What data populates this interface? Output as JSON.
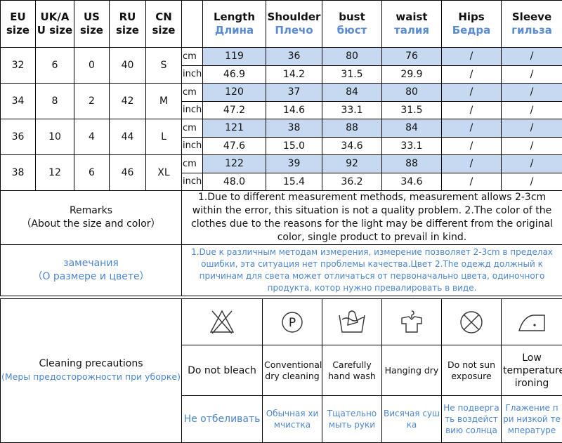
{
  "headers": {
    "eu": "EU size",
    "uk": "UK/A U size",
    "us": "US size",
    "ru": "RU size",
    "cn": "CN size",
    "measures": [
      {
        "en": "Length",
        "ru": "Длина"
      },
      {
        "en": "Shoulder",
        "ru": "Плечо"
      },
      {
        "en": "bust",
        "ru": "бюст"
      },
      {
        "en": "waist",
        "ru": "талия"
      },
      {
        "en": "Hips",
        "ru": "Бедра"
      },
      {
        "en": "Sleeve",
        "ru": "гильза"
      }
    ]
  },
  "units": {
    "cm": "cm",
    "inch": "inch"
  },
  "sizes": [
    {
      "eu": "32",
      "uk": "6",
      "us": "0",
      "ru": "40",
      "cn": "S",
      "cm": [
        "119",
        "36",
        "80",
        "76",
        "/",
        "/"
      ],
      "inch": [
        "46.9",
        "14.2",
        "31.5",
        "29.9",
        "/",
        "/"
      ]
    },
    {
      "eu": "34",
      "uk": "8",
      "us": "2",
      "ru": "42",
      "cn": "M",
      "cm": [
        "120",
        "37",
        "84",
        "80",
        "/",
        "/"
      ],
      "inch": [
        "47.2",
        "14.6",
        "33.1",
        "31.5",
        "/",
        "/"
      ]
    },
    {
      "eu": "36",
      "uk": "10",
      "us": "4",
      "ru": "44",
      "cn": "L",
      "cm": [
        "121",
        "38",
        "88",
        "84",
        "/",
        "/"
      ],
      "inch": [
        "47.6",
        "15.0",
        "34.6",
        "33.1",
        "/",
        "/"
      ]
    },
    {
      "eu": "38",
      "uk": "12",
      "us": "6",
      "ru": "46",
      "cn": "XL",
      "cm": [
        "122",
        "39",
        "92",
        "88",
        "/",
        "/"
      ],
      "inch": [
        "48.0",
        "15.4",
        "36.2",
        "34.6",
        "/",
        "/"
      ]
    }
  ],
  "remarks": {
    "title": "Remarks",
    "subtitle": "（About the size and color）",
    "text": "1.Due to different measurement methods, measurement allows 2-3cm within the error, this situation is not a quality problem.    2.The color of the clothes due to the reasons for the light may be different from the original color, single product to prevail in kind.",
    "title_ru": "замечания",
    "subtitle_ru": "（О размере и цвете）",
    "text_ru": "1.Due к различным методам измерения, измерение позволяет 2-3cm в пределах ошибки, эта ситуация нет проблемы качества.Цвет 2.The одежд должный к причинам для света может отличаться от первоначально цвета, одиночного продукта, котор нужно превалировать в виде."
  },
  "cleaning": {
    "title": "Cleaning precautions",
    "subtitle": "(Меры предосторожности при уборке)",
    "items": [
      {
        "icon": "no-bleach-icon",
        "en": "Do not bleach",
        "ru": "Не отбеливать"
      },
      {
        "icon": "dry-clean-p-icon",
        "en": "Conventional dry cleaning",
        "ru": "Обычная химчистка"
      },
      {
        "icon": "hand-wash-icon",
        "en": "Carefully hand wash",
        "ru": "Тщательно мыть руки"
      },
      {
        "icon": "hang-dry-icon",
        "en": "Hanging dry",
        "ru": "Висячая сушка"
      },
      {
        "icon": "no-sun-icon",
        "en": "Do not sun exposure",
        "ru": "Не подвергать воздействию солнца"
      },
      {
        "icon": "low-iron-icon",
        "en": "Low temperature ironing",
        "ru": "Глажение при низкой температуре"
      }
    ]
  }
}
